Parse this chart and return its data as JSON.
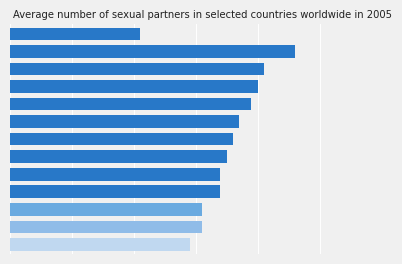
{
  "title": "Average number of sexual partners in selected countries worldwide in 2005",
  "title_fontsize": 7.2,
  "values": [
    10.5,
    23.0,
    20.5,
    20.0,
    19.5,
    18.5,
    18.0,
    17.5,
    17.0,
    17.0,
    15.5,
    15.5,
    14.5
  ],
  "bar_colors": [
    "#2878c8",
    "#2878c8",
    "#2878c8",
    "#2878c8",
    "#2878c8",
    "#2878c8",
    "#2878c8",
    "#2878c8",
    "#2878c8",
    "#2878c8",
    "#6aaae0",
    "#90bce8",
    "#c0d8f0"
  ],
  "background_color": "#f0f0f0",
  "plot_bg_color": "#f0f0f0",
  "bar_height": 0.72,
  "xlim": [
    0,
    28
  ],
  "grid_color": "#ffffff",
  "xtick_vals": [
    0,
    5,
    10,
    15,
    20,
    25
  ]
}
